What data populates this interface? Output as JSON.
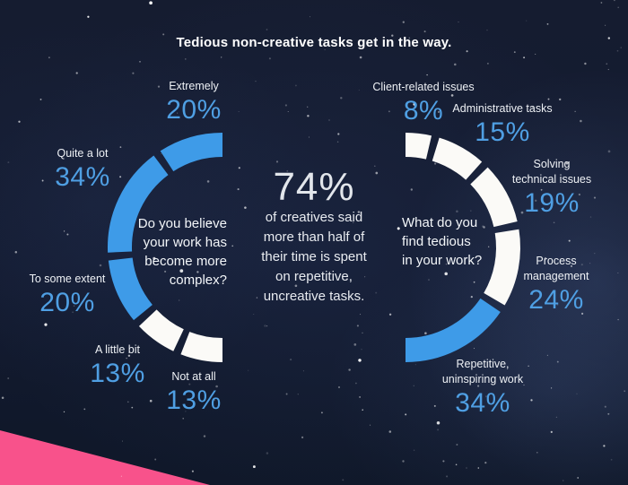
{
  "title": "Tedious non-creative tasks get in the way.",
  "colors": {
    "blue": "#3e9be8",
    "white": "#fbfaf7",
    "pink": "#f8528b",
    "pct_text": "#4f9fe3",
    "label_text": "#eef1f5",
    "background": "#131b30",
    "star": "#ffffff"
  },
  "center_stat": {
    "value": "74%",
    "text": "of creatives said more than half of their time is spent on repetitive, uncreative tasks.",
    "lines": [
      "of creatives said",
      "more than half of",
      "their time is spent",
      "on repetitive,",
      "uncreative tasks."
    ]
  },
  "chart_data": [
    {
      "type": "pie",
      "variant": "half-donut-open-right",
      "question": "Do you believe your work has become more complex?",
      "question_lines": [
        "Do you believe",
        "your work has",
        "become more",
        "complex?"
      ],
      "unit": "%",
      "total": 100,
      "segments": [
        {
          "label": "Extremely",
          "label_lines": [
            "Extremely"
          ],
          "value": 20,
          "pct": "20%",
          "color": "blue"
        },
        {
          "label": "Quite a lot",
          "label_lines": [
            "Quite a lot"
          ],
          "value": 34,
          "pct": "34%",
          "color": "blue"
        },
        {
          "label": "To some extent",
          "label_lines": [
            "To some extent"
          ],
          "value": 20,
          "pct": "20%",
          "color": "blue"
        },
        {
          "label": "A little bit",
          "label_lines": [
            "A little bit"
          ],
          "value": 13,
          "pct": "13%",
          "color": "white"
        },
        {
          "label": "Not at all",
          "label_lines": [
            "Not at all"
          ],
          "value": 13,
          "pct": "13%",
          "color": "white"
        }
      ]
    },
    {
      "type": "pie",
      "variant": "half-donut-open-left",
      "question": "What do you find tedious in your work?",
      "question_lines": [
        "What do you",
        "find tedious",
        "in your work?"
      ],
      "unit": "%",
      "total": 100,
      "segments": [
        {
          "label": "Client-related issues",
          "label_lines": [
            "Client-related issues"
          ],
          "value": 8,
          "pct": "8%",
          "color": "white"
        },
        {
          "label": "Administrative tasks",
          "label_lines": [
            "Administrative tasks"
          ],
          "value": 15,
          "pct": "15%",
          "color": "white"
        },
        {
          "label": "Solving technical issues",
          "label_lines": [
            "Solving",
            "technical issues"
          ],
          "value": 19,
          "pct": "19%",
          "color": "white"
        },
        {
          "label": "Process management",
          "label_lines": [
            "Process",
            "management"
          ],
          "value": 24,
          "pct": "24%",
          "color": "white"
        },
        {
          "label": "Repetitive, uninspiring work",
          "label_lines": [
            "Repetitive,",
            "uninspiring work"
          ],
          "value": 34,
          "pct": "34%",
          "color": "blue"
        }
      ]
    }
  ]
}
